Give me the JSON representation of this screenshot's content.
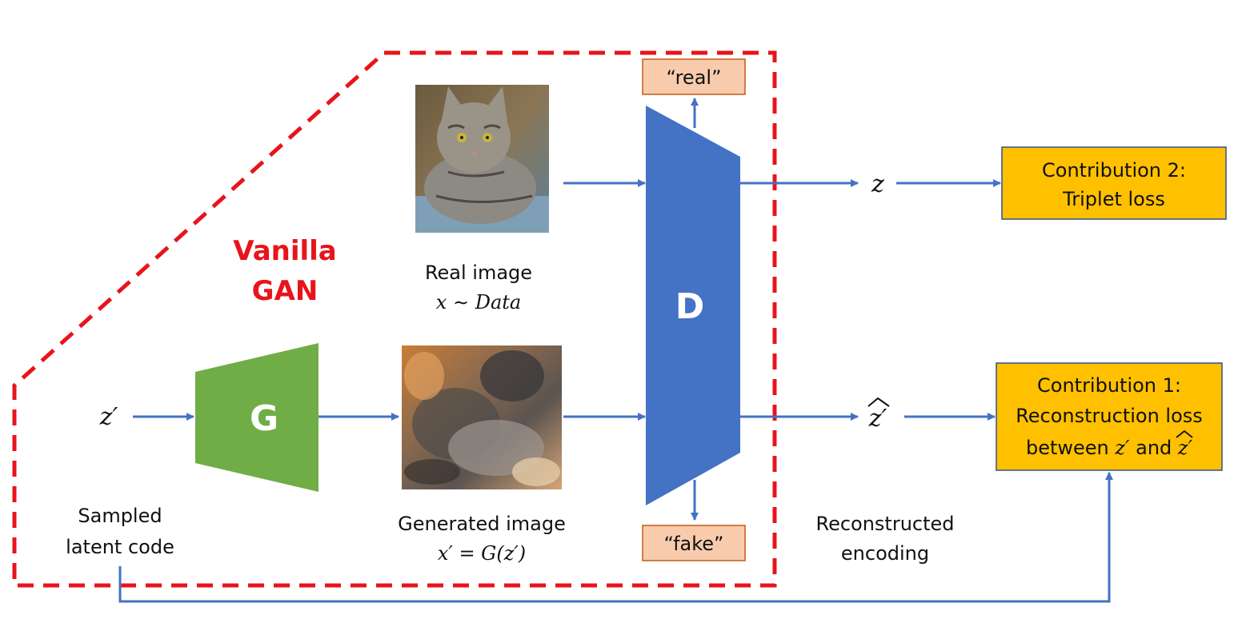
{
  "title_lines": [
    "Vanilla",
    "GAN"
  ],
  "generator": {
    "label": "G"
  },
  "discriminator": {
    "label": "D"
  },
  "inputs": {
    "latent_symbol": "z′",
    "latent_caption_lines": [
      "Sampled",
      "latent code"
    ]
  },
  "images": {
    "real": {
      "caption": "Real image",
      "formula": "x ∼ Data"
    },
    "generated": {
      "caption": "Generated image",
      "formula": "x′ = G(z′)"
    }
  },
  "outputs": {
    "real_label": "“real”",
    "fake_label": "“fake”",
    "z_symbol": "z",
    "z_hat_symbol": "z′",
    "reconstructed_caption_lines": [
      "Reconstructed",
      "encoding"
    ]
  },
  "contributions": {
    "c2_lines": [
      "Contribution 2:",
      "Triplet loss"
    ],
    "c1_lines": [
      "Contribution 1:",
      "Reconstruction loss"
    ],
    "c1_line3_a": "between ",
    "c1_line3_z": "z′",
    "c1_line3_and": " and ",
    "c1_line3_zhat": "z′"
  },
  "colors": {
    "arrow": "#4472c4",
    "generator_fill": "#70ad47",
    "discriminator_fill": "#4472c4",
    "contribution_fill": "#ffc000",
    "label_box_fill": "#f8cbad",
    "dashed_border": "#e8141b"
  }
}
